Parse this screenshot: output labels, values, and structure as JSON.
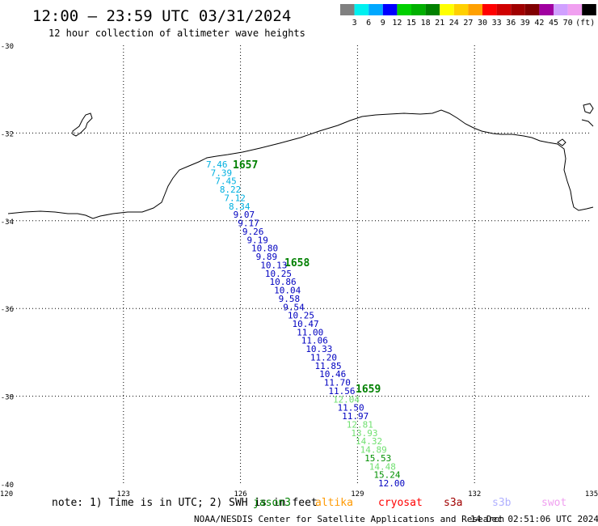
{
  "header": {
    "title": "12:00 — 23:59 UTC 03/31/2024",
    "subtitle": "12 hour collection of altimeter wave heights"
  },
  "legend": {
    "labels": [
      "3",
      "6",
      "9",
      "12",
      "15",
      "18",
      "21",
      "24",
      "27",
      "30",
      "33",
      "36",
      "39",
      "42",
      "45",
      "70"
    ],
    "unit": "(ft)",
    "colors": [
      "#808080",
      "#00f0f0",
      "#00a8ff",
      "#0000ff",
      "#00d000",
      "#00b000",
      "#008000",
      "#ffff00",
      "#ffd000",
      "#ffa000",
      "#ff0000",
      "#d00000",
      "#a00000",
      "#800000",
      "#a000a0",
      "#d0a0ff",
      "#f0a0f0",
      "#000000"
    ]
  },
  "axes": {
    "lat_labels": [
      "-30",
      "-32",
      "-34",
      "-36",
      "-38",
      "-40"
    ],
    "lon_labels": [
      "120",
      "123",
      "126",
      "129",
      "132",
      "135"
    ]
  },
  "track_times": [
    {
      "label": "1657",
      "color": "#008000"
    },
    {
      "label": "1658",
      "color": "#008000"
    },
    {
      "label": "1659",
      "color": "#008000"
    }
  ],
  "wave_heights": [
    {
      "v": "7.46",
      "c": "#00b0e0"
    },
    {
      "v": "7.39",
      "c": "#00b0e0"
    },
    {
      "v": "7.45",
      "c": "#00b0e0"
    },
    {
      "v": "8.22",
      "c": "#00b0e0"
    },
    {
      "v": "7.12",
      "c": "#00b0e0"
    },
    {
      "v": "8.34",
      "c": "#00b0e0"
    },
    {
      "v": "9.07",
      "c": "#0000c0"
    },
    {
      "v": "9.17",
      "c": "#0000c0"
    },
    {
      "v": "9.26",
      "c": "#0000c0"
    },
    {
      "v": "9.19",
      "c": "#0000c0"
    },
    {
      "v": "10.80",
      "c": "#0000c0"
    },
    {
      "v": "9.89",
      "c": "#0000c0"
    },
    {
      "v": "10.13",
      "c": "#0000c0"
    },
    {
      "v": "10.25",
      "c": "#0000c0"
    },
    {
      "v": "10.86",
      "c": "#0000c0"
    },
    {
      "v": "10.04",
      "c": "#0000c0"
    },
    {
      "v": "9.58",
      "c": "#0000c0"
    },
    {
      "v": "9.54",
      "c": "#0000c0"
    },
    {
      "v": "10.25",
      "c": "#0000c0"
    },
    {
      "v": "10.47",
      "c": "#0000c0"
    },
    {
      "v": "11.00",
      "c": "#0000c0"
    },
    {
      "v": "11.06",
      "c": "#0000c0"
    },
    {
      "v": "10.33",
      "c": "#0000c0"
    },
    {
      "v": "11.20",
      "c": "#0000c0"
    },
    {
      "v": "11.85",
      "c": "#0000c0"
    },
    {
      "v": "10.46",
      "c": "#0000c0"
    },
    {
      "v": "11.70",
      "c": "#0000c0"
    },
    {
      "v": "11.56",
      "c": "#0000c0"
    },
    {
      "v": "12.04",
      "c": "#70e070"
    },
    {
      "v": "11.50",
      "c": "#0000c0"
    },
    {
      "v": "11.97",
      "c": "#0000c0"
    },
    {
      "v": "12.81",
      "c": "#70e070"
    },
    {
      "v": "13.93",
      "c": "#70e070"
    },
    {
      "v": "14.32",
      "c": "#70e070"
    },
    {
      "v": "14.89",
      "c": "#70e070"
    },
    {
      "v": "15.53",
      "c": "#009000"
    },
    {
      "v": "14.48",
      "c": "#70e070"
    },
    {
      "v": "15.24",
      "c": "#009000"
    },
    {
      "v": "12.00",
      "c": "#0000c0"
    }
  ],
  "footer": {
    "note": "note: 1) Time is in UTC; 2) SWH is in feet",
    "sats": [
      {
        "name": "jason3",
        "color": "#008000"
      },
      {
        "name": "altika",
        "color": "#ff9900"
      },
      {
        "name": "cryosat",
        "color": "#ff0000"
      },
      {
        "name": "s3a",
        "color": "#a00000"
      },
      {
        "name": "s3b",
        "color": "#b0b0ff"
      },
      {
        "name": "swot",
        "color": "#f0a0f0"
      }
    ],
    "credit": "NOAA/NESDIS Center for Satellite Applications and Research",
    "timestamp": "14 Dec 02:51:06 UTC 2024"
  }
}
